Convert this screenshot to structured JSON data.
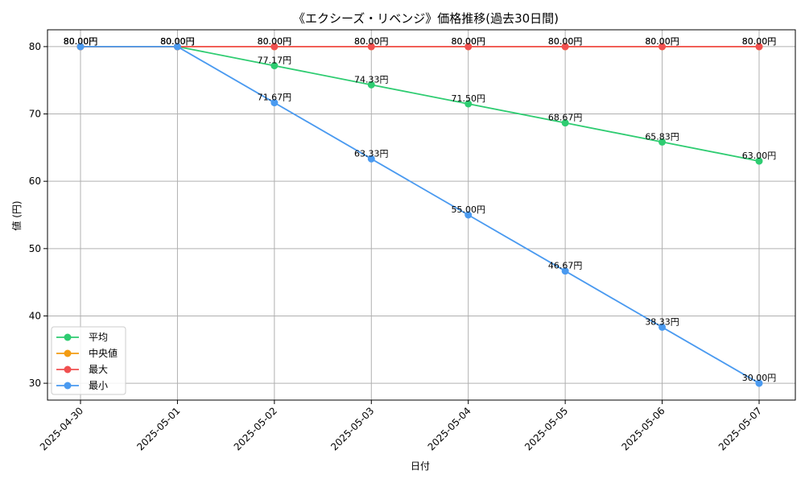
{
  "chart_data": {
    "type": "line",
    "title": "《エクシーズ・リベンジ》価格推移(過去30日間)",
    "xlabel": "日付",
    "ylabel": "値 (円)",
    "categories": [
      "2025-04-30",
      "2025-05-01",
      "2025-05-02",
      "2025-05-03",
      "2025-05-04",
      "2025-05-05",
      "2025-05-06",
      "2025-05-07"
    ],
    "yticks": [
      "30",
      "40",
      "50",
      "60",
      "70",
      "80"
    ],
    "ylim": [
      27.5,
      82.5
    ],
    "grid": true,
    "legend_position": "lower-left",
    "series": [
      {
        "name": "平均",
        "color": "#2ecc71",
        "values": [
          80,
          80,
          77.17,
          74.33,
          71.5,
          68.67,
          65.83,
          63
        ],
        "labels": [
          "80.00円",
          "80.00円",
          "77.17円",
          "74.33円",
          "71.50円",
          "68.67円",
          "65.83円",
          "63.00円"
        ]
      },
      {
        "name": "中央値",
        "color": "#f39c12",
        "values": [
          80,
          80,
          80,
          80,
          80,
          80,
          80,
          80
        ],
        "labels": [
          "80.00円",
          "80.00円",
          "80.00円",
          "80.00円",
          "80.00円",
          "80.00円",
          "80.00円",
          "80.00円"
        ]
      },
      {
        "name": "最大",
        "color": "#f05050",
        "values": [
          80,
          80,
          80,
          80,
          80,
          80,
          80,
          80
        ],
        "labels": [
          "80.00円",
          "80.00円",
          "80.00円",
          "80.00円",
          "80.00円",
          "80.00円",
          "80.00円",
          "80.00円"
        ]
      },
      {
        "name": "最小",
        "color": "#4a9af0",
        "values": [
          80,
          80,
          71.67,
          63.33,
          55,
          46.67,
          38.33,
          30
        ],
        "labels": [
          "80.00円",
          "80.00円",
          "71.67円",
          "63.33円",
          "55.00円",
          "46.67円",
          "38.33円",
          "30.00円"
        ]
      }
    ]
  }
}
